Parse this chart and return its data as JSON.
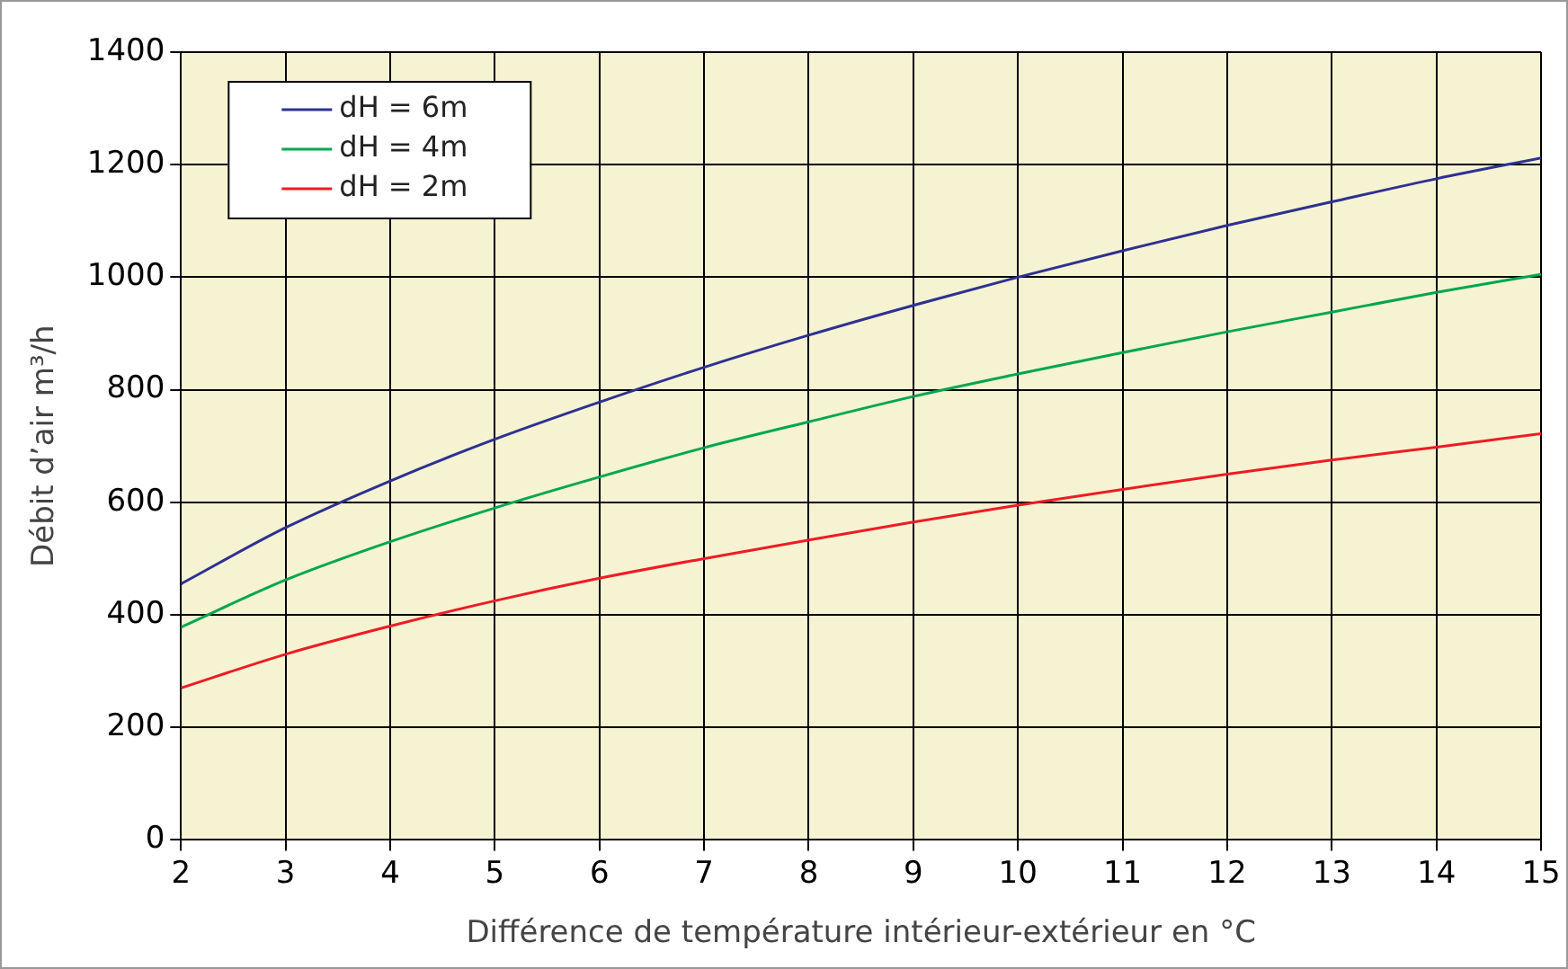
{
  "chart_data": {
    "type": "line",
    "xlabel": "Différence de température intérieur-extérieur en °C",
    "ylabel": "Débit d’air m³/h",
    "x": [
      2,
      3,
      4,
      5,
      6,
      7,
      8,
      9,
      10,
      11,
      12,
      13,
      14,
      15
    ],
    "series": [
      {
        "name": "dH = 6m",
        "color": "#2e3192",
        "values": [
          455,
          555,
          638,
          712,
          778,
          840,
          897,
          950,
          1000,
          1047,
          1092,
          1134,
          1175,
          1212
        ]
      },
      {
        "name": "dH = 4m",
        "color": "#00a651",
        "values": [
          378,
          462,
          530,
          590,
          645,
          697,
          743,
          788,
          828,
          866,
          903,
          938,
          973,
          1005
        ]
      },
      {
        "name": "dH = 2m",
        "color": "#ed1c24",
        "values": [
          270,
          330,
          380,
          425,
          465,
          500,
          533,
          565,
          595,
          623,
          650,
          675,
          698,
          722
        ]
      }
    ],
    "xlim": [
      2,
      15
    ],
    "xticks": [
      2,
      3,
      4,
      5,
      6,
      7,
      8,
      9,
      10,
      11,
      12,
      13,
      14,
      15
    ],
    "ylim": [
      0,
      1400
    ],
    "yticks": [
      0,
      200,
      400,
      600,
      800,
      1000,
      1200,
      1400
    ],
    "grid": true,
    "legend": "top left",
    "marker": "none",
    "line_style": "solid"
  }
}
